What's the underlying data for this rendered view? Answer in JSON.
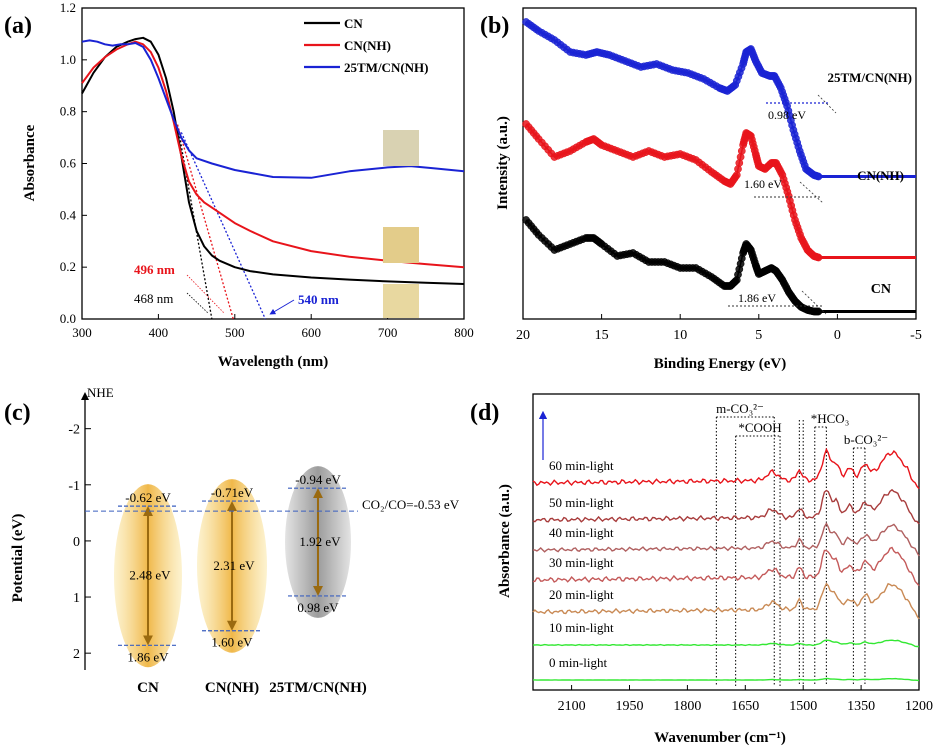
{
  "colors": {
    "cn": "#000000",
    "cnnh": "#e8141b",
    "tm": "#1a23d4",
    "gold": "#e0a83a",
    "arrow": "#9a6a10",
    "gray": "#a8a8a8",
    "green": "#33e833",
    "dashblue": "#3a5fbf"
  },
  "panel_labels": [
    "(a)",
    "(b)",
    "(c)",
    "(d)"
  ],
  "chart_data": [
    {
      "type": "line",
      "panel": "(a)",
      "xlabel": "Wavelength (nm)",
      "ylabel": "Absorbance",
      "xlim": [
        300,
        800
      ],
      "ylim": [
        0,
        1.2
      ],
      "xticks": [
        "300",
        "400",
        "500",
        "600",
        "700",
        "800"
      ],
      "yticks": [
        "0.0",
        "0.2",
        "0.4",
        "0.6",
        "0.8",
        "1.0",
        "1.2"
      ],
      "legend": [
        "CN",
        "CN(NH)",
        "25TM/CN(NH)"
      ],
      "legend_position": "top-right",
      "series": [
        {
          "name": "CN",
          "color": "#000000",
          "x": [
            300,
            315,
            330,
            345,
            360,
            370,
            380,
            390,
            400,
            410,
            420,
            430,
            440,
            450,
            460,
            470,
            480,
            500,
            520,
            550,
            600,
            650,
            700,
            750,
            800
          ],
          "y": [
            0.87,
            0.95,
            1.01,
            1.05,
            1.07,
            1.08,
            1.085,
            1.07,
            1.02,
            0.93,
            0.8,
            0.63,
            0.45,
            0.34,
            0.28,
            0.245,
            0.225,
            0.2,
            0.185,
            0.172,
            0.16,
            0.152,
            0.145,
            0.14,
            0.135
          ]
        },
        {
          "name": "CN(NH)",
          "color": "#e8141b",
          "x": [
            300,
            315,
            330,
            345,
            360,
            370,
            380,
            390,
            400,
            410,
            420,
            430,
            440,
            450,
            460,
            470,
            480,
            500,
            520,
            550,
            600,
            650,
            700,
            750,
            800
          ],
          "y": [
            0.91,
            0.97,
            1.01,
            1.04,
            1.06,
            1.07,
            1.06,
            1.03,
            0.97,
            0.88,
            0.76,
            0.63,
            0.53,
            0.48,
            0.45,
            0.43,
            0.41,
            0.37,
            0.34,
            0.3,
            0.262,
            0.24,
            0.225,
            0.212,
            0.2
          ]
        },
        {
          "name": "25TM/CN(NH)",
          "color": "#1a23d4",
          "x": [
            300,
            310,
            320,
            330,
            340,
            350,
            360,
            370,
            380,
            390,
            400,
            410,
            420,
            430,
            440,
            450,
            470,
            500,
            550,
            600,
            650,
            700,
            730,
            760,
            800
          ],
          "y": [
            1.07,
            1.075,
            1.07,
            1.06,
            1.055,
            1.06,
            1.06,
            1.065,
            1.05,
            1.0,
            0.93,
            0.85,
            0.77,
            0.7,
            0.65,
            0.62,
            0.6,
            0.575,
            0.548,
            0.545,
            0.57,
            0.585,
            0.59,
            0.582,
            0.57
          ]
        }
      ],
      "tangent_lines": [
        {
          "color": "#000000",
          "x": [
            425,
            470
          ],
          "y": [
            0.75,
            0.0
          ]
        },
        {
          "color": "#e8141b",
          "x": [
            425,
            498
          ],
          "y": [
            0.75,
            0.0
          ]
        },
        {
          "color": "#1a23d4",
          "x": [
            430,
            540
          ],
          "y": [
            0.72,
            0.0
          ]
        }
      ],
      "annotations": [
        {
          "text": "496 nm",
          "color": "#e8141b"
        },
        {
          "text": "468 nm",
          "color": "#000000"
        },
        {
          "text": "540 nm",
          "color": "#1a23d4"
        }
      ]
    },
    {
      "type": "scatter",
      "panel": "(b)",
      "xlabel": "Binding Energy (eV)",
      "ylabel": "Intensity (a.u.)",
      "xlim": [
        20,
        -5
      ],
      "xticks": [
        "20",
        "15",
        "10",
        "5",
        "0",
        "-5"
      ],
      "series": [
        {
          "name": "25TM/CN(NH)",
          "color": "#1a23d4",
          "x": [
            19.8,
            19,
            18,
            17,
            16,
            15.3,
            14.5,
            13.5,
            12.5,
            11.5,
            10.5,
            9.5,
            8.5,
            7.5,
            7,
            6.5,
            6,
            5.8,
            5.5,
            5.2,
            4.8,
            4.3,
            4,
            3.6,
            3.2,
            2.8,
            2.4,
            2,
            1.5,
            1.2
          ],
          "y": [
            0.96,
            0.93,
            0.9,
            0.86,
            0.85,
            0.86,
            0.85,
            0.83,
            0.81,
            0.82,
            0.8,
            0.79,
            0.77,
            0.74,
            0.73,
            0.75,
            0.82,
            0.86,
            0.87,
            0.83,
            0.79,
            0.78,
            0.78,
            0.74,
            0.68,
            0.6,
            0.53,
            0.47,
            0.45,
            0.445
          ]
        },
        {
          "name": "CN(NH)",
          "color": "#e8141b",
          "x": [
            19.8,
            19,
            18,
            17,
            16,
            15.5,
            15,
            14,
            13,
            12,
            11,
            10,
            9,
            8,
            7.2,
            6.8,
            6.4,
            6,
            5.8,
            5.5,
            5.2,
            5,
            4.6,
            4.2,
            3.9,
            3.5,
            3.1,
            2.7,
            2.3,
            1.9,
            1.5,
            1.2
          ],
          "y": [
            0.62,
            0.57,
            0.51,
            0.53,
            0.56,
            0.57,
            0.55,
            0.53,
            0.51,
            0.53,
            0.51,
            0.52,
            0.5,
            0.46,
            0.43,
            0.42,
            0.45,
            0.55,
            0.59,
            0.58,
            0.52,
            0.48,
            0.47,
            0.49,
            0.49,
            0.45,
            0.38,
            0.3,
            0.24,
            0.2,
            0.18,
            0.175
          ]
        },
        {
          "name": "CN",
          "color": "#000000",
          "x": [
            19.8,
            19,
            18,
            17,
            16,
            15.5,
            15,
            14,
            13,
            12,
            11,
            10,
            9,
            8,
            7.2,
            6.8,
            6.4,
            6,
            5.8,
            5.5,
            5.2,
            5,
            4.6,
            4.2,
            3.9,
            3.5,
            3.1,
            2.7,
            2.3,
            1.9,
            1.5,
            1.2
          ],
          "y": [
            0.3,
            0.25,
            0.2,
            0.22,
            0.24,
            0.24,
            0.22,
            0.18,
            0.19,
            0.16,
            0.16,
            0.14,
            0.14,
            0.11,
            0.08,
            0.08,
            0.1,
            0.19,
            0.22,
            0.2,
            0.15,
            0.12,
            0.13,
            0.14,
            0.13,
            0.1,
            0.06,
            0.03,
            0.01,
            0.0,
            -0.005,
            -0.005
          ]
        }
      ],
      "annotations": [
        {
          "text": "0.98 eV",
          "color": "#000000"
        },
        {
          "text": "1.60 eV",
          "color": "#000000"
        },
        {
          "text": "1.86 eV",
          "color": "#000000"
        }
      ],
      "labels": [
        "25TM/CN(NH)",
        "CN(NH)",
        "CN"
      ]
    },
    {
      "type": "diagram",
      "panel": "(c)",
      "ylabel": "Potential (eV)",
      "yaxis_title": "NHE",
      "ylim": [
        2.3,
        -2.6
      ],
      "yticks": [
        "-2",
        "-1",
        "0",
        "1",
        "2"
      ],
      "reference": {
        "text": "CO₂/CO=-0.53 eV",
        "value": -0.53
      },
      "bands": [
        {
          "name": "CN",
          "cb": -0.62,
          "vb": 1.86,
          "gap": 2.48,
          "cb_text": "-0.62 eV",
          "vb_text": "1.86 eV",
          "gap_text": "2.48 eV"
        },
        {
          "name": "CN(NH)",
          "cb": -0.71,
          "vb": 1.6,
          "gap": 2.31,
          "cb_text": "-0.71eV",
          "vb_text": "1.60 eV",
          "gap_text": "2.31 eV"
        },
        {
          "name": "25TM/CN(NH)",
          "cb": -0.94,
          "vb": 0.98,
          "gap": 1.92,
          "cb_text": "-0.94 eV",
          "vb_text": "0.98 eV",
          "gap_text": "1.92 eV"
        }
      ]
    },
    {
      "type": "line",
      "panel": "(d)",
      "xlabel": "Wavenumber (cm⁻¹)",
      "ylabel": "Absorbance (a.u.)",
      "xlim": [
        2200,
        1200
      ],
      "xticks": [
        "2100",
        "1950",
        "1800",
        "1650",
        "1500",
        "1350",
        "1200"
      ],
      "series_names": [
        "60 min-light",
        "50 min-light",
        "40 min-light",
        "30 min-light",
        "20 min-light",
        "10 min-light",
        "0 min-light"
      ],
      "series_colors": [
        "#e8141b",
        "#a83c3c",
        "#b06060",
        "#c45a5a",
        "#c98a55",
        "#33e833",
        "#33e833"
      ],
      "markers": [
        {
          "text": "m-CO₃²⁻",
          "positions": [
            1725,
            1575
          ]
        },
        {
          "text": "*COOH",
          "positions": [
            1675,
            1560
          ]
        },
        {
          "text": "*HCO₃",
          "positions": [
            1470,
            1440
          ]
        },
        {
          "text": "b-CO₃²⁻",
          "positions": [
            1370,
            1340
          ]
        }
      ],
      "extra_lines": [
        1510,
        1500
      ]
    }
  ]
}
